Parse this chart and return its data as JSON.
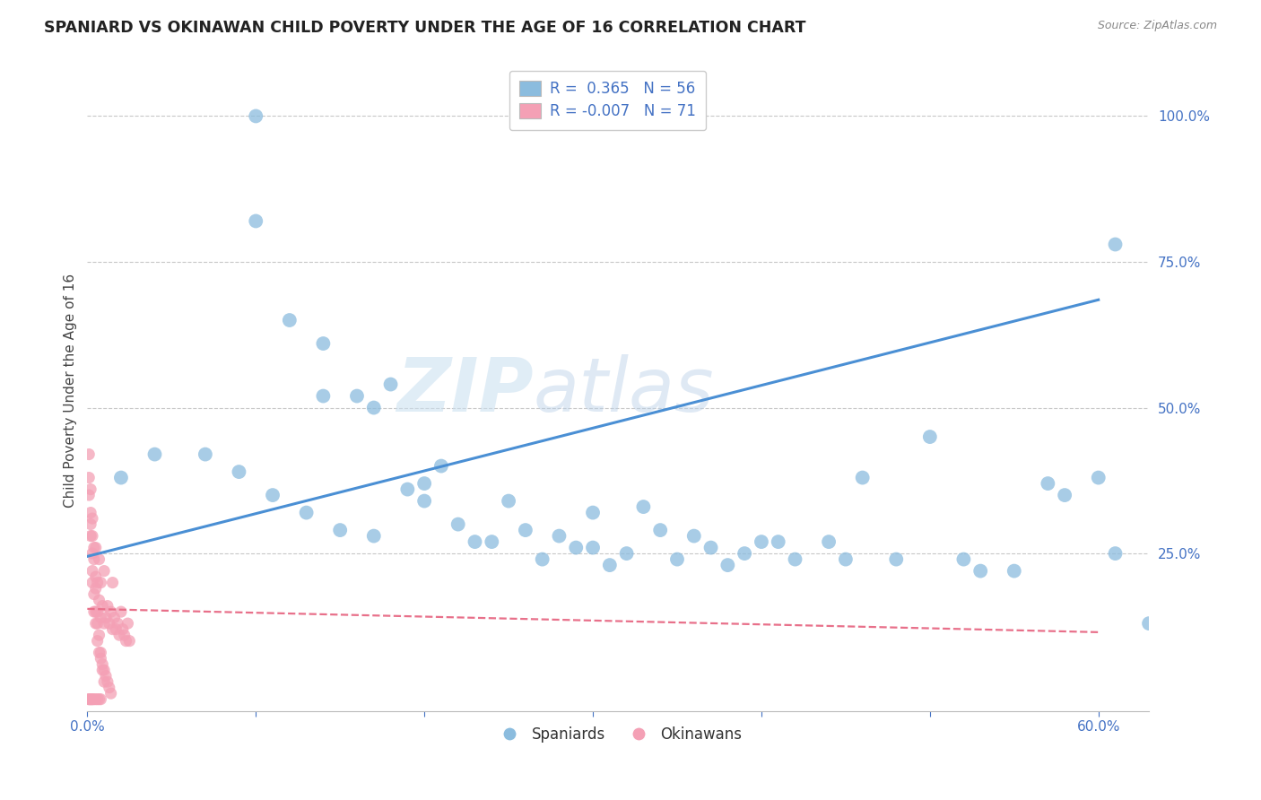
{
  "title": "SPANIARD VS OKINAWAN CHILD POVERTY UNDER THE AGE OF 16 CORRELATION CHART",
  "source": "Source: ZipAtlas.com",
  "ylabel": "Child Poverty Under the Age of 16",
  "r_blue": 0.365,
  "n_blue": 56,
  "r_pink": -0.007,
  "n_pink": 71,
  "xlim": [
    0.0,
    0.63
  ],
  "ylim": [
    -0.02,
    1.08
  ],
  "color_blue": "#8BBCDE",
  "color_pink": "#F4A0B5",
  "trend_blue": "#4A8FD4",
  "trend_pink": "#E8708A",
  "background": "#FFFFFF",
  "watermark_zip": "ZIP",
  "watermark_atlas": "atlas",
  "blue_trend_x0": 0.0,
  "blue_trend_y0": 0.245,
  "blue_trend_x1": 0.6,
  "blue_trend_y1": 0.685,
  "pink_trend_x0": 0.0,
  "pink_trend_y0": 0.155,
  "pink_trend_x1": 0.6,
  "pink_trend_y1": 0.115,
  "spaniard_x": [
    0.02,
    0.04,
    0.07,
    0.09,
    0.1,
    0.1,
    0.11,
    0.12,
    0.13,
    0.14,
    0.14,
    0.15,
    0.16,
    0.17,
    0.17,
    0.18,
    0.19,
    0.2,
    0.2,
    0.21,
    0.22,
    0.23,
    0.24,
    0.25,
    0.26,
    0.27,
    0.28,
    0.29,
    0.3,
    0.3,
    0.31,
    0.32,
    0.33,
    0.34,
    0.35,
    0.36,
    0.37,
    0.38,
    0.39,
    0.4,
    0.41,
    0.42,
    0.44,
    0.45,
    0.46,
    0.48,
    0.5,
    0.52,
    0.53,
    0.55,
    0.57,
    0.58,
    0.6,
    0.61,
    0.61,
    0.63
  ],
  "spaniard_y": [
    0.38,
    0.42,
    0.42,
    0.39,
    1.0,
    0.82,
    0.35,
    0.65,
    0.32,
    0.61,
    0.52,
    0.29,
    0.52,
    0.5,
    0.28,
    0.54,
    0.36,
    0.34,
    0.37,
    0.4,
    0.3,
    0.27,
    0.27,
    0.34,
    0.29,
    0.24,
    0.28,
    0.26,
    0.32,
    0.26,
    0.23,
    0.25,
    0.33,
    0.29,
    0.24,
    0.28,
    0.26,
    0.23,
    0.25,
    0.27,
    0.27,
    0.24,
    0.27,
    0.24,
    0.38,
    0.24,
    0.45,
    0.24,
    0.22,
    0.22,
    0.37,
    0.35,
    0.38,
    0.78,
    0.25,
    0.13
  ],
  "okinawan_x": [
    0.002,
    0.003,
    0.004,
    0.005,
    0.005,
    0.006,
    0.006,
    0.007,
    0.007,
    0.008,
    0.008,
    0.009,
    0.01,
    0.01,
    0.011,
    0.012,
    0.013,
    0.014,
    0.015,
    0.015,
    0.016,
    0.017,
    0.018,
    0.019,
    0.02,
    0.021,
    0.022,
    0.023,
    0.024,
    0.025,
    0.001,
    0.002,
    0.003,
    0.003,
    0.004,
    0.005,
    0.006,
    0.007,
    0.008,
    0.009,
    0.01,
    0.011,
    0.012,
    0.013,
    0.014,
    0.001,
    0.002,
    0.003,
    0.004,
    0.005,
    0.006,
    0.007,
    0.008,
    0.009,
    0.01,
    0.001,
    0.002,
    0.003,
    0.004,
    0.005,
    0.001,
    0.001,
    0.002,
    0.002,
    0.003,
    0.003,
    0.004,
    0.005,
    0.006,
    0.007,
    0.008
  ],
  "okinawan_y": [
    0.28,
    0.22,
    0.18,
    0.15,
    0.26,
    0.2,
    0.13,
    0.17,
    0.24,
    0.14,
    0.2,
    0.16,
    0.13,
    0.22,
    0.14,
    0.16,
    0.13,
    0.15,
    0.12,
    0.2,
    0.14,
    0.12,
    0.13,
    0.11,
    0.15,
    0.12,
    0.11,
    0.1,
    0.13,
    0.1,
    0.35,
    0.3,
    0.25,
    0.2,
    0.15,
    0.13,
    0.1,
    0.08,
    0.07,
    0.06,
    0.05,
    0.04,
    0.03,
    0.02,
    0.01,
    0.38,
    0.32,
    0.28,
    0.24,
    0.19,
    0.15,
    0.11,
    0.08,
    0.05,
    0.03,
    0.42,
    0.36,
    0.31,
    0.26,
    0.21,
    0.0,
    0.0,
    0.0,
    0.0,
    0.0,
    0.0,
    0.0,
    0.0,
    0.0,
    0.0,
    0.0
  ]
}
